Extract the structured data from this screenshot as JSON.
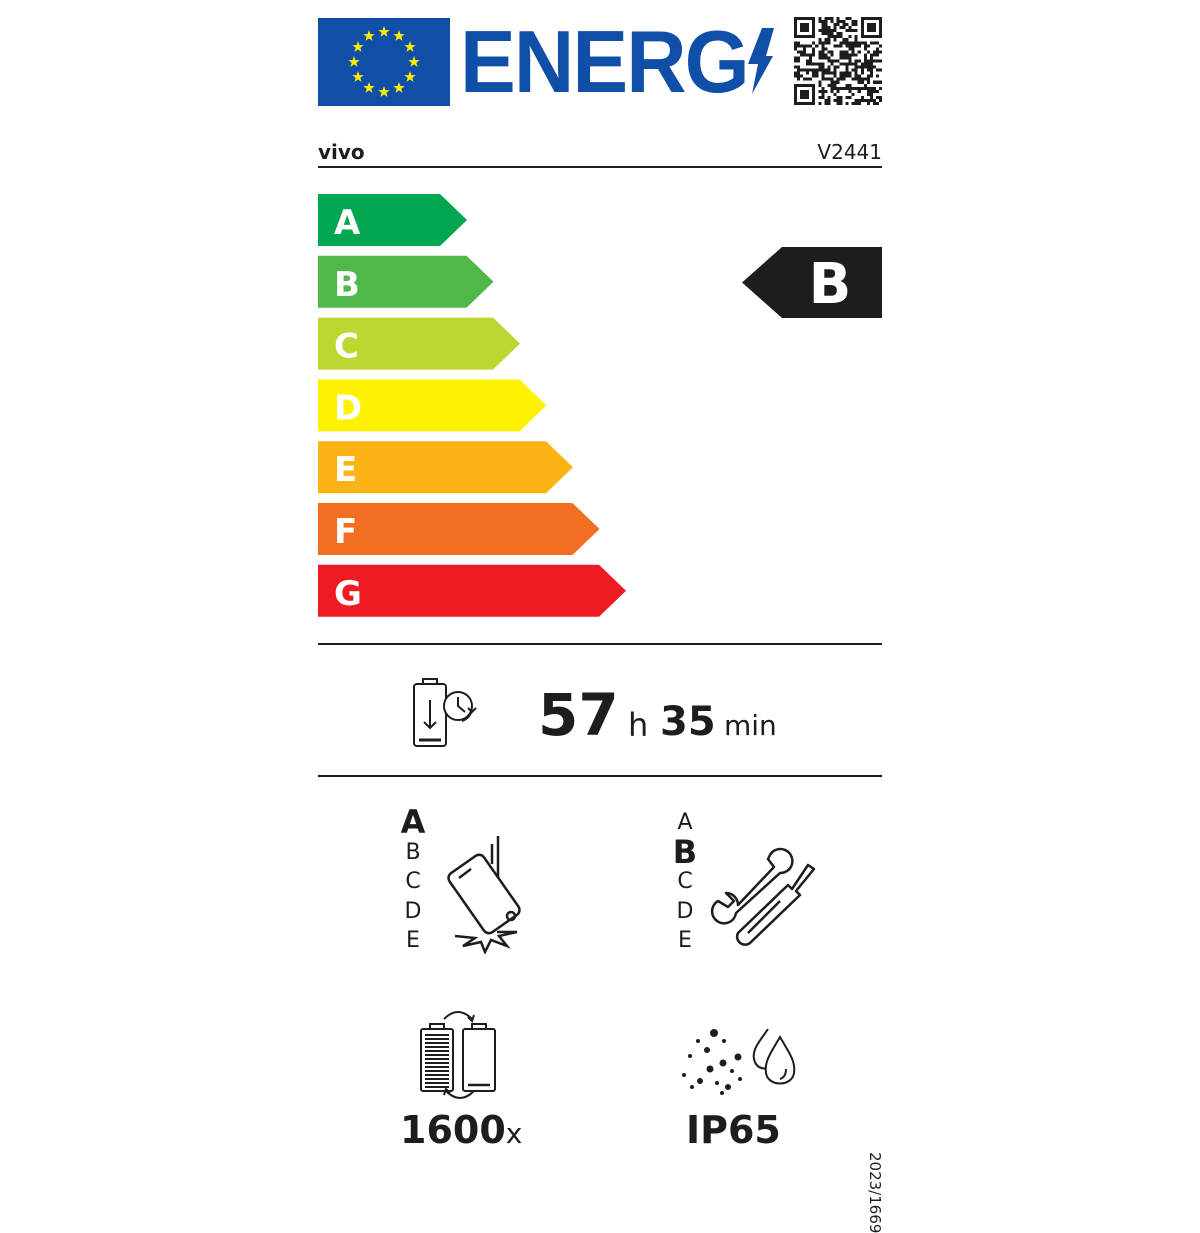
{
  "header": {
    "logo_text": "ENERG",
    "brand": "vivo",
    "model": "V2441"
  },
  "energy_scale": {
    "classes": [
      {
        "label": "A",
        "color": "#00a650"
      },
      {
        "label": "B",
        "color": "#50b848"
      },
      {
        "label": "C",
        "color": "#bed630"
      },
      {
        "label": "D",
        "color": "#fff200"
      },
      {
        "label": "E",
        "color": "#fbb316"
      },
      {
        "label": "F",
        "color": "#f26f21"
      },
      {
        "label": "G",
        "color": "#ed1c24"
      }
    ],
    "rating": "B",
    "rating_color": "#1d1d1b"
  },
  "battery_endurance": {
    "icon": "battery-clock-icon",
    "hours": "57",
    "hours_unit": "h",
    "minutes": "35",
    "minutes_unit": "min"
  },
  "drop_resistance": {
    "icon": "phone-drop-icon",
    "classes": [
      "A",
      "B",
      "C",
      "D",
      "E"
    ],
    "selected": "A"
  },
  "repairability": {
    "icon": "wrench-screwdriver-icon",
    "classes": [
      "A",
      "B",
      "C",
      "D",
      "E"
    ],
    "selected": "B"
  },
  "battery_cycles": {
    "icon": "battery-cycles-icon",
    "value": "1600",
    "unit": "x"
  },
  "ingress_protection": {
    "icon": "dust-water-icon",
    "value": "IP65"
  },
  "regulation": "2023/1669",
  "colors": {
    "eu_blue": "#0f4fa8",
    "eu_yellow": "#ffed00"
  }
}
